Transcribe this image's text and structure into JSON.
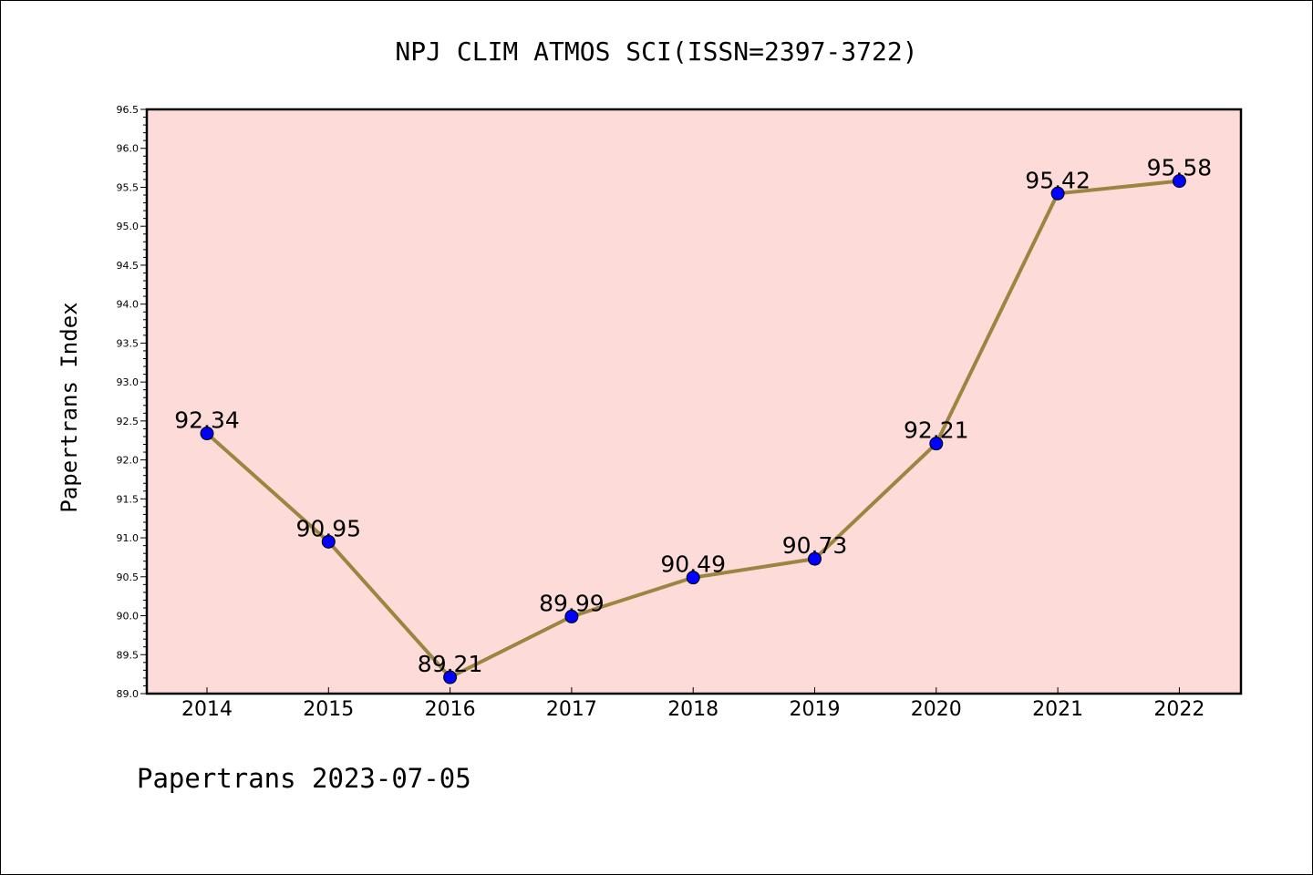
{
  "chart_data": {
    "type": "line",
    "title": "NPJ CLIM ATMOS SCI(ISSN=2397-3722)",
    "ylabel": "Papertrans Index",
    "xlabel": "",
    "footer": "Papertrans 2023-07-05",
    "categories": [
      "2014",
      "2015",
      "2016",
      "2017",
      "2018",
      "2019",
      "2020",
      "2021",
      "2022"
    ],
    "values": [
      92.34,
      90.95,
      89.21,
      89.99,
      90.49,
      90.73,
      92.21,
      95.42,
      95.58
    ],
    "data_labels": [
      "92.34",
      "90.95",
      "89.21",
      "89.99",
      "90.49",
      "90.73",
      "92.21",
      "95.42",
      "95.58"
    ],
    "ylim": [
      89.0,
      96.5
    ],
    "yticks": [
      "89.0",
      "89.5",
      "90.0",
      "90.5",
      "91.0",
      "91.5",
      "92.0",
      "92.5",
      "93.0",
      "93.5",
      "94.0",
      "94.5",
      "95.0",
      "95.5",
      "96.0",
      "96.5"
    ],
    "grid": false,
    "colors": {
      "plot_background": "#fddbd8",
      "line": "#9b8540",
      "marker": "#0000ff"
    }
  }
}
